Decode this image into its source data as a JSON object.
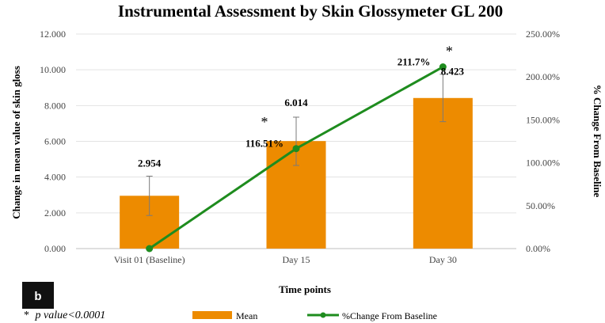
{
  "chart_data": {
    "type": "bar",
    "title": "Instrumental Assessment by Skin Glossymeter GL 200",
    "xlabel": "Time points",
    "ylabel": "Change in mean value of skin gloss",
    "y2label": "% Change From Baseline",
    "categories": [
      "Visit 01 (Baseline)",
      "Day 15",
      "Day 30"
    ],
    "ylim": [
      0,
      12
    ],
    "y_ticks": [
      "0.000",
      "2.000",
      "4.000",
      "6.000",
      "8.000",
      "10.000",
      "12.000"
    ],
    "y2lim": [
      0,
      250
    ],
    "y2_ticks": [
      "0.00%",
      "50.00%",
      "100.00%",
      "150.00%",
      "200.00%",
      "250.00%"
    ],
    "grid": true,
    "legend_position": "bottom",
    "series": [
      {
        "name": "Mean",
        "kind": "bar",
        "axis": "left",
        "color": "#ED8B00",
        "values": [
          2.954,
          6.014,
          8.423
        ],
        "value_labels": [
          "2.954",
          "6.014",
          "8.423"
        ],
        "error_low": [
          1.85,
          4.65,
          7.1
        ],
        "error_high": [
          4.05,
          7.35,
          9.75
        ]
      },
      {
        "name": "%Change From Baseline",
        "kind": "line",
        "axis": "right",
        "color": "#1E8C1E",
        "values": [
          0,
          116.51,
          211.7
        ],
        "value_labels": [
          "",
          "116.51%",
          "211.7%"
        ]
      }
    ],
    "significance_markers": [
      "",
      "*",
      "*"
    ],
    "panel_label": "b",
    "footnote": {
      "symbol": "*",
      "text": "p value<0.0001"
    }
  }
}
